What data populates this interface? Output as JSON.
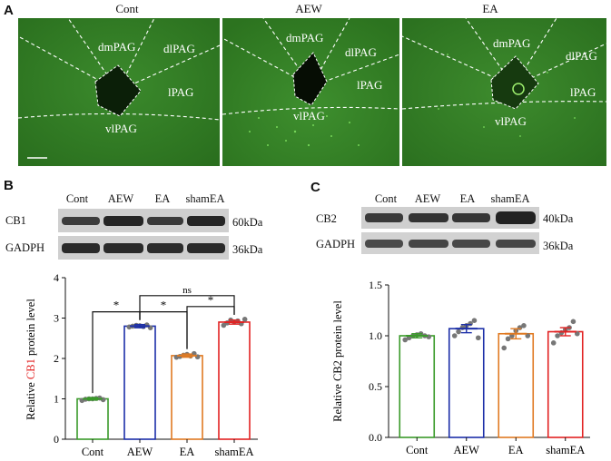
{
  "panel_a": {
    "letter": "A",
    "images": [
      {
        "title": "Cont",
        "regions": [
          "dmPAG",
          "dlPAG",
          "lPAG",
          "vlPAG"
        ]
      },
      {
        "title": "AEW",
        "regions": [
          "dmPAG",
          "dlPAG",
          "lPAG",
          "vlPAG"
        ]
      },
      {
        "title": "EA",
        "regions": [
          "dmPAG",
          "dlPAG",
          "lPAG",
          "vlPAG"
        ]
      }
    ],
    "colors": {
      "tissue": "#2f7a22",
      "tissue_dark": "#1f5a16",
      "lesion": "#0b1f08"
    }
  },
  "panel_b": {
    "letter": "B",
    "lanes": [
      "Cont",
      "AEW",
      "EA",
      "shamEA"
    ],
    "blots": [
      {
        "protein": "CB1",
        "size": "60kDa"
      },
      {
        "protein": "GADPH",
        "size": "36kDa"
      }
    ]
  },
  "panel_c": {
    "letter": "C",
    "lanes": [
      "Cont",
      "AEW",
      "EA",
      "shamEA"
    ],
    "blots": [
      {
        "protein": "CB2",
        "size": "40kDa"
      },
      {
        "protein": "GADPH",
        "size": "36kDa"
      }
    ]
  },
  "chart_data": [
    {
      "type": "bar",
      "categories": [
        "Cont",
        "AEW",
        "EA",
        "shamEA"
      ],
      "values": [
        1.0,
        2.8,
        2.07,
        2.9
      ],
      "errors": [
        0.03,
        0.04,
        0.04,
        0.05
      ],
      "points": [
        [
          0.96,
          0.99,
          1.0,
          1.0,
          1.01,
          1.02,
          0.98
        ],
        [
          2.78,
          2.8,
          2.82,
          2.81,
          2.79,
          2.83,
          2.76
        ],
        [
          2.03,
          2.05,
          2.08,
          2.1,
          2.06,
          2.12,
          2.04
        ],
        [
          2.82,
          2.88,
          2.95,
          2.9,
          2.93,
          2.86,
          2.97
        ]
      ],
      "bar_colors": [
        "#3a9a2a",
        "#1c2fa8",
        "#e07a22",
        "#e22222"
      ],
      "ylabel_parts": [
        "Relative ",
        "CB1",
        " protein level"
      ],
      "ylim": [
        0,
        4
      ],
      "yticks": [
        "0",
        "1",
        "2",
        "3",
        "4"
      ],
      "significance": [
        {
          "from": 0,
          "to": 1,
          "label": "*"
        },
        {
          "from": 1,
          "to": 2,
          "label": "*"
        },
        {
          "from": 2,
          "to": 3,
          "label": "*"
        },
        {
          "from": 1,
          "to": 3,
          "label": "ns"
        }
      ]
    },
    {
      "type": "bar",
      "categories": [
        "Cont",
        "AEW",
        "EA",
        "shamEA"
      ],
      "values": [
        1.0,
        1.07,
        1.02,
        1.04
      ],
      "errors": [
        0.02,
        0.04,
        0.05,
        0.04
      ],
      "points": [
        [
          0.96,
          0.98,
          1.0,
          1.01,
          1.02,
          1.0,
          0.99
        ],
        [
          1.0,
          1.04,
          1.08,
          1.1,
          1.12,
          1.15,
          0.98
        ],
        [
          0.88,
          0.97,
          1.0,
          1.05,
          1.08,
          1.1,
          1.0
        ],
        [
          0.93,
          1.0,
          1.03,
          1.06,
          1.08,
          1.14,
          1.02
        ]
      ],
      "bar_colors": [
        "#3a9a2a",
        "#1c2fa8",
        "#e07a22",
        "#e22222"
      ],
      "ylabel": "Relative CB2 protein level",
      "ylim": [
        0,
        1.5
      ],
      "yticks": [
        "0.0",
        "0.5",
        "1.0",
        "1.5"
      ]
    }
  ]
}
